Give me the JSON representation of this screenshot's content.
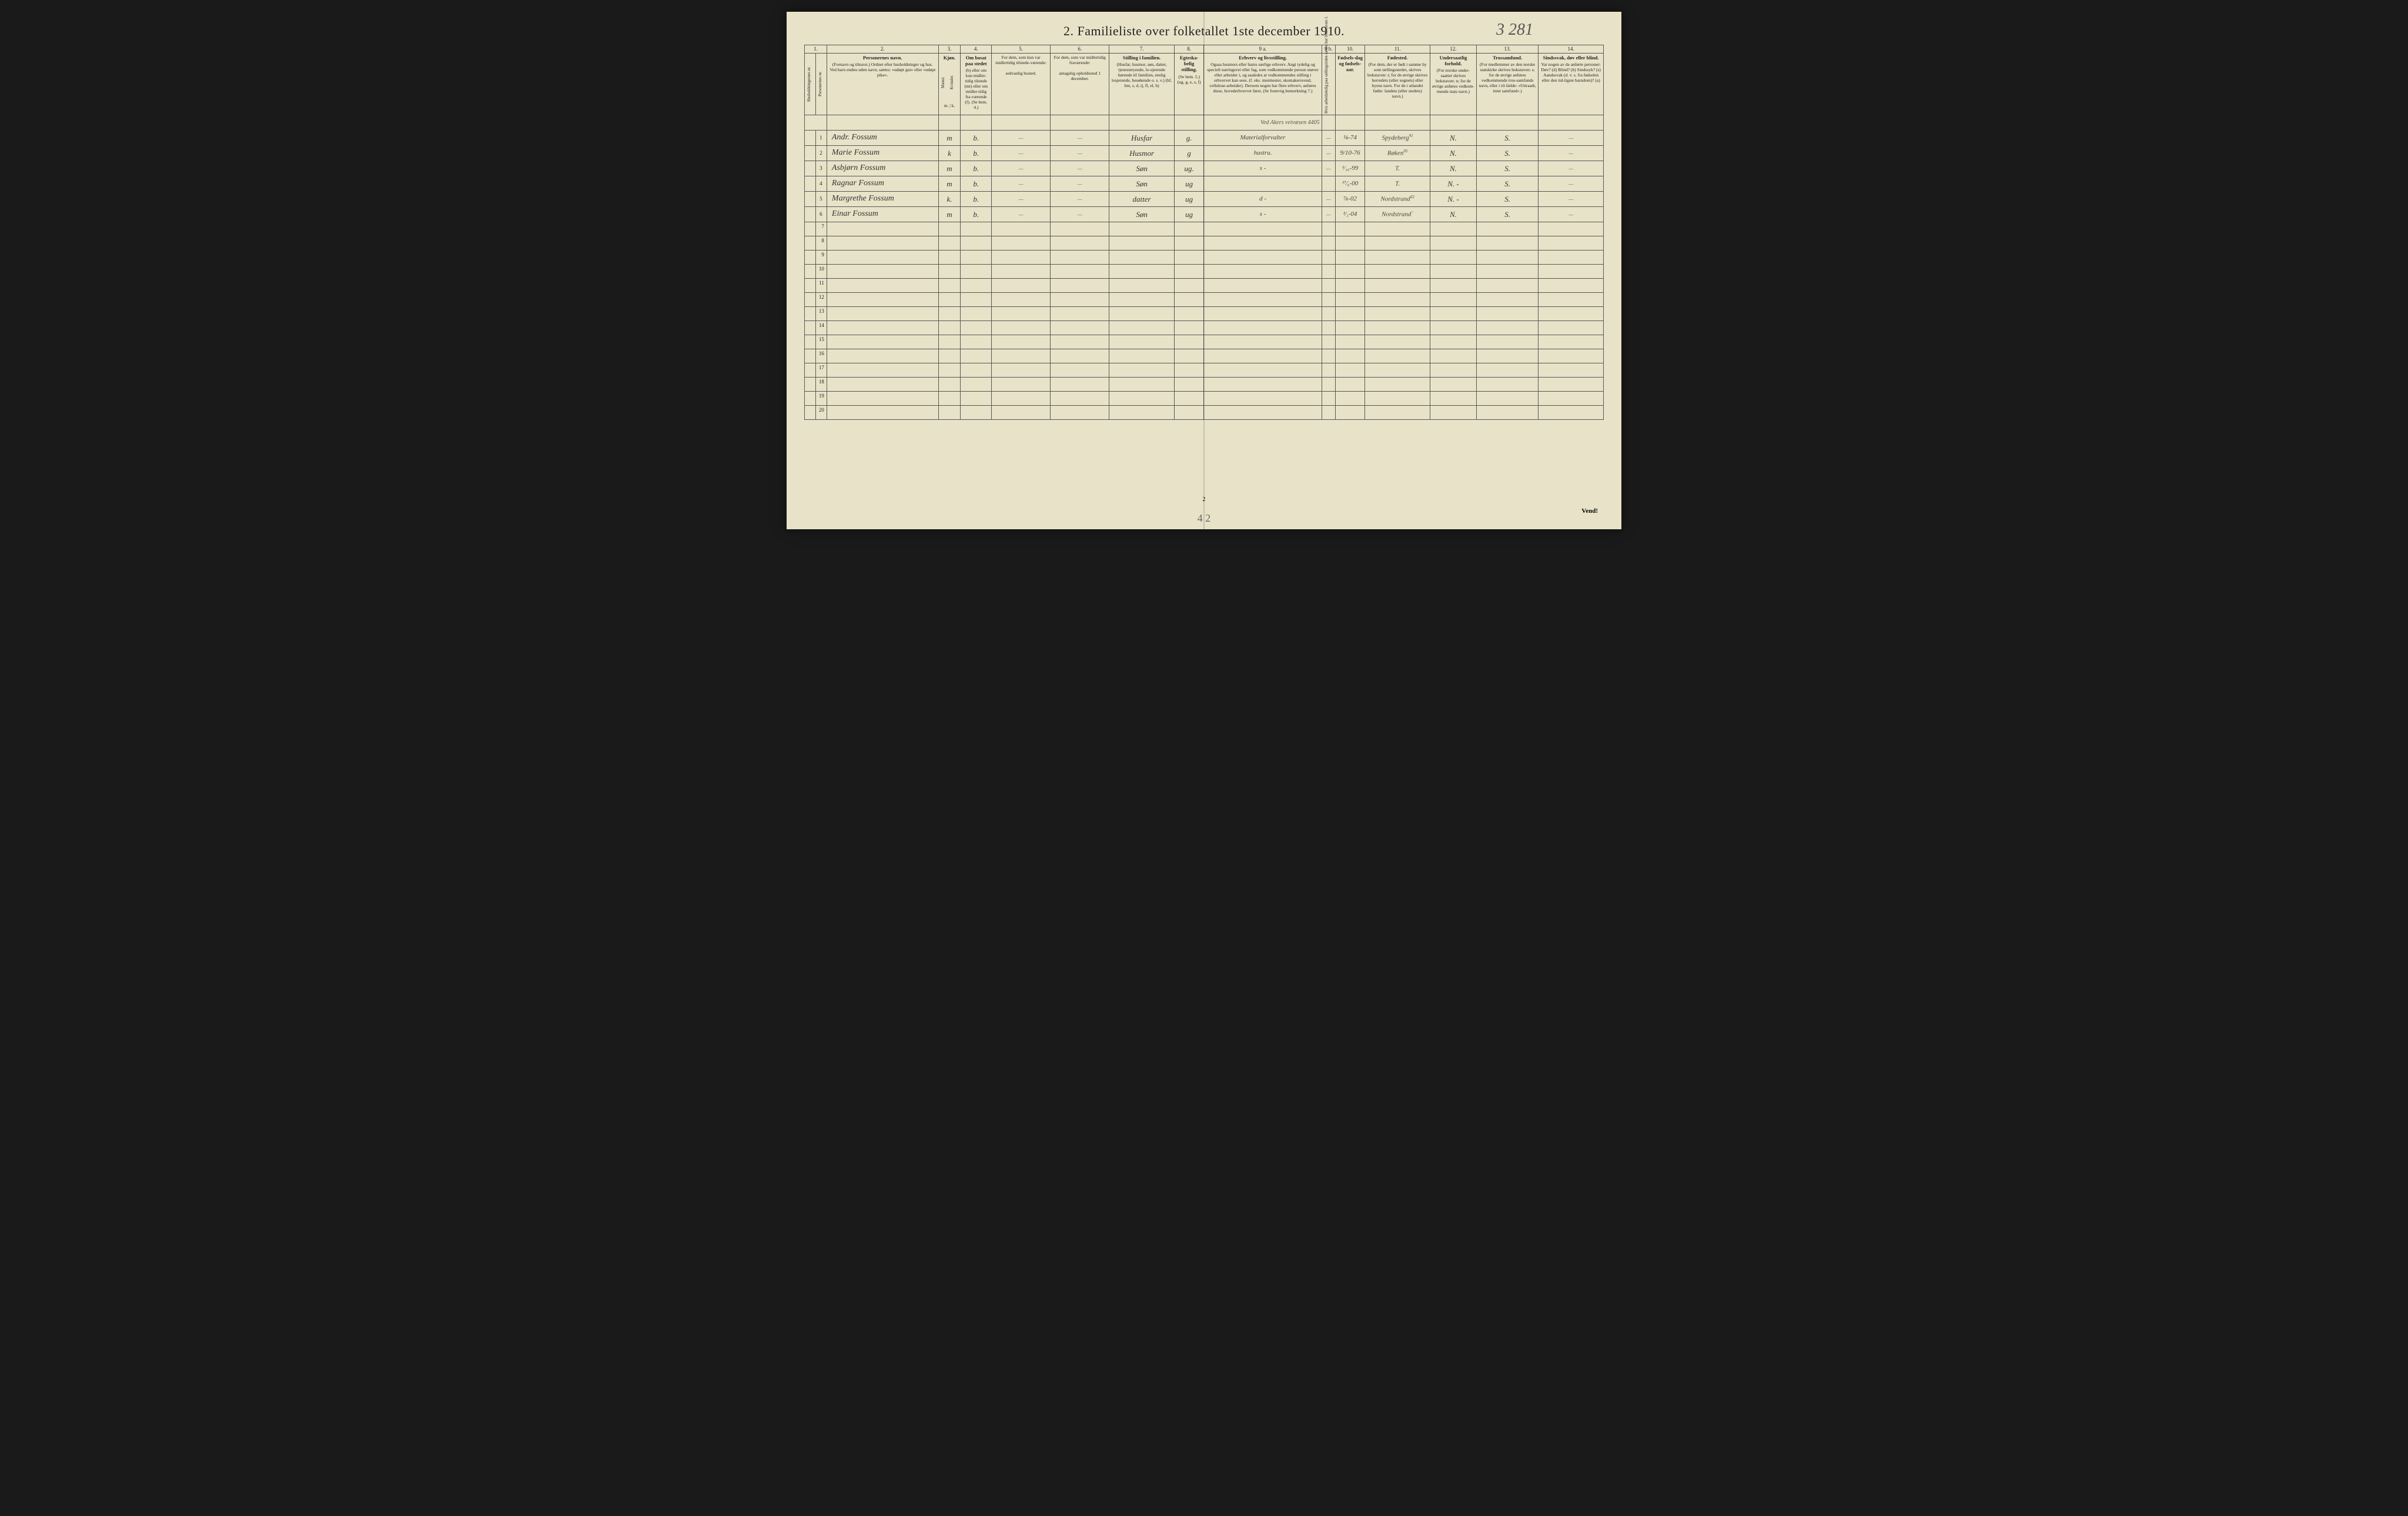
{
  "title": "2.  Familieliste over folketallet 1ste december 1910.",
  "handwritten_page_number": "3 281",
  "footer_page_num": "2",
  "footer_handwriting": "4 2",
  "footer_vend": "Vend!",
  "column_numbers": [
    "1.",
    "2.",
    "3.",
    "4.",
    "5.",
    "6.",
    "7.",
    "8.",
    "9 a.",
    "9 b.",
    "10.",
    "11.",
    "12.",
    "13.",
    "14."
  ],
  "headers": {
    "col1a": "Husholdningernes nr.",
    "col1b": "Personernes nr.",
    "col2_title": "Personernes navn.",
    "col2_sub": "(Fornavn og tilnavn.)\nOrdnet efter husholdninger og hus.\nVed barn endnu uden navn, sættes: «udøpt gut»\neller «udøpt pike».",
    "col3_title": "Kjøn.",
    "col3_m": "Mænd.",
    "col3_k": "Kvinder.",
    "col3_sub": "m. | k.",
    "col4_title": "Om bosat paa stedet",
    "col4_text": "(b) eller om kun midler-tidig tilstede (mt) eller om midler-tidig fra-værende (f).\n(Se bem. 4.)",
    "col5_title": "For dem, som kun var midlertidig tilstede-værende:",
    "col5_sub": "sedvanlig bosted.",
    "col6_title": "For dem, som var midlertidig fraværende:",
    "col6_sub": "antagelig opholdssted 1 december.",
    "col7_title": "Stilling i familien.",
    "col7_text": "(Husfar, husmor, søn, datter, tjenestetyende, lo-sjerende hørende til familien, enslig losjerende, besøkende o. s. v.)\n(hf, hm, s, d, tj, fl, el, b)",
    "col8_title": "Egteska-belig stilling.",
    "col8_text": "(Se bem. 5.)\n(ug, g, e, s, f)",
    "col9a_title": "Erhverv og livsstilling.",
    "col9a_text": "Ogsaa husmors eller barns særlige erhverv.\nAngi tydelig og specielt næringsvei eller fag, som vedkommende person utøver eller arbeider i, og saaledes at vedkommendes stilling i erhvervet kan sees. (f. eks. murmester, skomakersvend, cellulose-arbeider). Dersom nogen har flere erhverv, anføres disse, hovederhvervet først.\n(Se forøvrig bemerkning 7.)",
    "col9b": "Hvis arbeidsledig paa tællingstiden sættes her bokstaven: l.",
    "col10_title": "Fødsels-dag og fødsels-aar.",
    "col11_title": "Fødested.",
    "col11_text": "(For dem, der er født i samme by som tællingsstedet, skrives bokstaven: t; for de øvrige skrives herredets (eller sognets) eller byens navn. For de i utlandet fødte: landets (eller stedets) navn.)",
    "col12_title": "Undersaatlig forhold.",
    "col12_text": "(For norske under-saatter skrives bokstaven: n; for de øvrige anføres vedkom-mende stats navn.)",
    "col13_title": "Trossamfund.",
    "col13_text": "(For medlemmer av den norske statskirke skrives bokstaven: s; for de øvrige anføres vedkommende tros-samfunds navn, eller i til-fælde: «Uttraadt, intet samfund».)",
    "col14_title": "Sindssvak, døv eller blind.",
    "col14_text": "Var nogen av de anførte personer:\nDøv?      (d)\nBlind?    (b)\nSindssyk? (s)\nAandssvak (d. v. s. fra fødselen eller den tid-ligste barndom)? (a)"
  },
  "top_annotation": "Ved Akers veivæsen 4405",
  "rows": [
    {
      "num": "1",
      "name": "Andr. Fossum",
      "sex": "m",
      "bosat": "b.",
      "col5": "—",
      "col6": "—",
      "stilling": "Husfar",
      "egt": "g.",
      "erhverv": "Materialforvalter",
      "col9b": "—",
      "fdato": "⅛-74",
      "fsted": "Spydeberg",
      "col11sup": "91",
      "under": "N.",
      "tros": "S.",
      "col14": "—"
    },
    {
      "num": "2",
      "name": "Marie Fossum",
      "sex": "k",
      "bosat": "b.",
      "col5": "—",
      "col6": "—",
      "stilling": "Husmor",
      "egt": "g",
      "erhverv": "hustru.",
      "col9b": "—",
      "fdato": "9/10-76",
      "fsted": "Røken",
      "col11sup": "05",
      "under": "N.",
      "tros": "S.",
      "col14": "—"
    },
    {
      "num": "3",
      "name": "Asbjørn Fossum",
      "sex": "m",
      "bosat": "b.",
      "col5": "—",
      "col6": "—",
      "stilling": "Søn",
      "egt": "ug.",
      "erhverv": "s  -",
      "col9b": "—",
      "fdato": "¹⁄₁₀-99",
      "fsted": "T.",
      "col11sup": "",
      "under": "N.",
      "tros": "S.",
      "col14": "—"
    },
    {
      "num": "4",
      "name": "Ragnar Fossum",
      "sex": "m",
      "bosat": "b.",
      "col5": "—",
      "col6": "—",
      "stilling": "Søn",
      "egt": "ug",
      "erhverv": "",
      "col9b": "",
      "fdato": "¹⁷⁄₆-00",
      "fsted": "T.",
      "col11sup": "",
      "under": "N. -",
      "tros": "S.",
      "col14": "—"
    },
    {
      "num": "5",
      "name": "Margrethe Fossum",
      "sex": "k.",
      "bosat": "b.",
      "col5": "—",
      "col6": "—",
      "stilling": "datter",
      "egt": "ug",
      "erhverv": "d  -",
      "col9b": "—",
      "fdato": "⅞-02",
      "fsted": "Nordstrand",
      "col11sup": "02",
      "under": "N. -",
      "tros": "S.",
      "col14": "—"
    },
    {
      "num": "6",
      "name": "Einar Fossum",
      "sex": "m",
      "bosat": "b.",
      "col5": "—",
      "col6": "—",
      "stilling": "Søn",
      "egt": "ug",
      "erhverv": "s  -",
      "col9b": "—",
      "fdato": "²⁄₁-04",
      "fsted": "Nordstrand",
      "col11sup": "~",
      "under": "N.",
      "tros": "S.",
      "col14": "—"
    }
  ],
  "empty_rows": [
    "7",
    "8",
    "9",
    "10",
    "11",
    "12",
    "13",
    "14",
    "15",
    "16",
    "17",
    "18",
    "19",
    "20"
  ],
  "colwidths": {
    "c1a": "18px",
    "c1b": "18px",
    "c2": "180px",
    "c3": "36px",
    "c4": "50px",
    "c5": "95px",
    "c6": "95px",
    "c7": "105px",
    "c8": "48px",
    "c9a": "190px",
    "c9b": "22px",
    "c10": "48px",
    "c11": "105px",
    "c12": "75px",
    "c13": "100px",
    "c14": "105px"
  }
}
